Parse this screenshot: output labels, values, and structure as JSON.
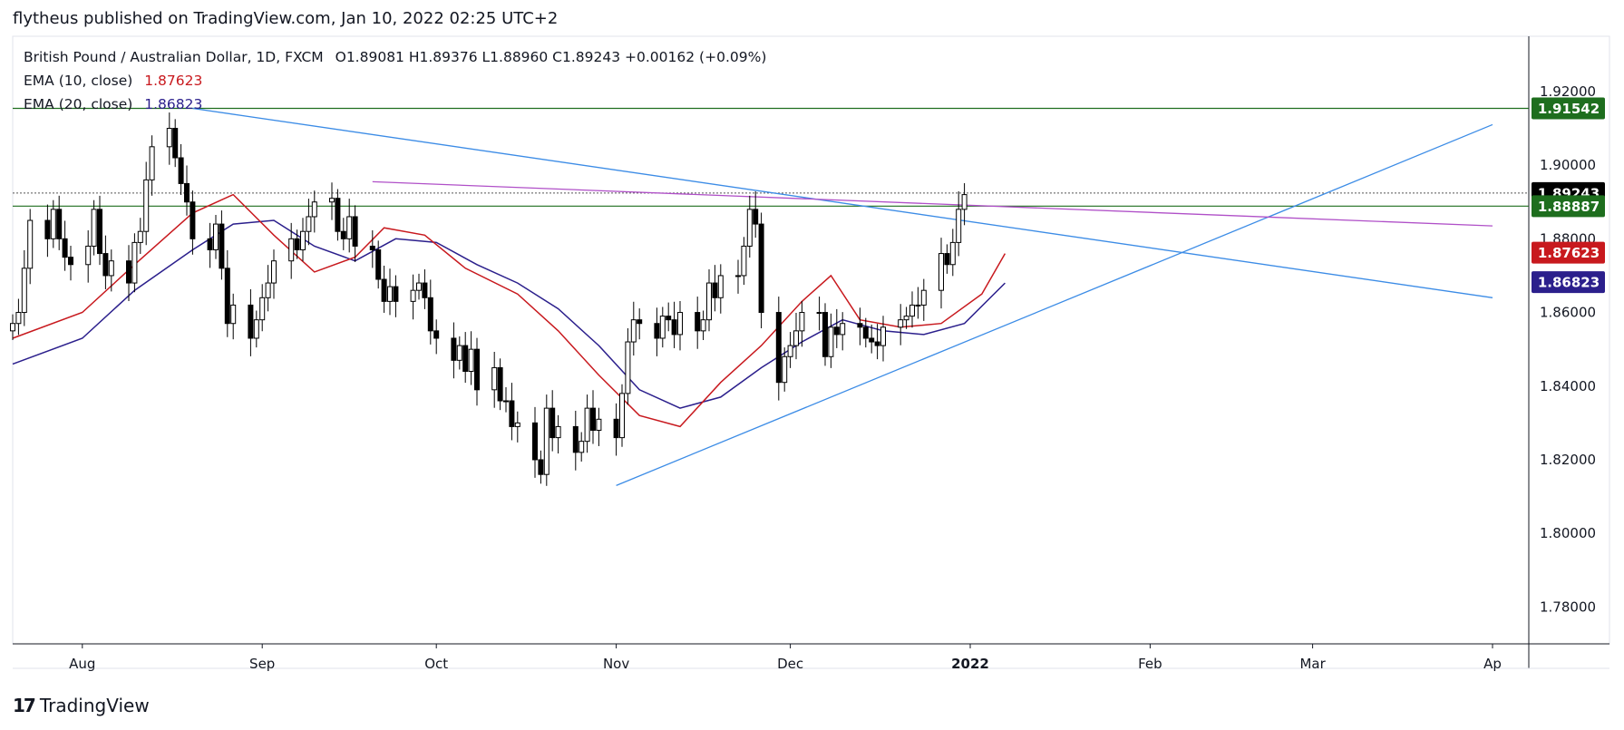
{
  "header": {
    "published": "flytheus published on TradingView.com, Jan 10, 2022 02:25 UTC+2"
  },
  "legend": {
    "symbol": "British Pound / Australian Dollar, 1D, FXCM",
    "ohlc": "O1.89081 H1.89376 L1.88960 C1.89243 +0.00162 (+0.09%)",
    "ema10_label": "EMA (10, close)",
    "ema10_value": "1.87623",
    "ema20_label": "EMA (20, close)",
    "ema20_value": "1.86823"
  },
  "footer": {
    "logo": "17",
    "brand": "TradingView"
  },
  "colors": {
    "ema10": "#c8191e",
    "ema20": "#2b1f8c",
    "trendline": "#3c8ce6",
    "resistance": "#b050c8",
    "horizontal": "#1e6e1e",
    "price_badge": "#000000",
    "green_badge": "#1e6e1e",
    "red_badge": "#c8191e",
    "blue_badge": "#2b1f8c"
  },
  "chart_data": {
    "type": "candlestick",
    "symbol": "GBPAUD",
    "interval": "1D",
    "ylim": [
      1.77,
      1.935
    ],
    "y_ticks": [
      "1.92000",
      "1.90000",
      "1.88000",
      "1.86000",
      "1.84000",
      "1.82000",
      "1.80000",
      "1.78000"
    ],
    "x_ticks": [
      {
        "label": "Aug",
        "date": "2021-08-01"
      },
      {
        "label": "Sep",
        "date": "2021-09-01"
      },
      {
        "label": "Oct",
        "date": "2021-10-01"
      },
      {
        "label": "Nov",
        "date": "2021-11-01"
      },
      {
        "label": "Dec",
        "date": "2021-12-01"
      },
      {
        "label": "2022",
        "date": "2022-01-01"
      },
      {
        "label": "Feb",
        "date": "2022-02-01"
      },
      {
        "label": "Mar",
        "date": "2022-03-01"
      },
      {
        "label": "Ap",
        "date": "2022-04-01"
      }
    ],
    "price_labels": [
      {
        "value": 1.91542,
        "text": "1.91542",
        "kind": "green"
      },
      {
        "value": 1.89243,
        "text": "1.89243",
        "kind": "price"
      },
      {
        "value": 1.88887,
        "text": "1.88887",
        "kind": "green"
      },
      {
        "value": 1.87623,
        "text": "1.87623",
        "kind": "red"
      },
      {
        "value": 1.86823,
        "text": "1.86823",
        "kind": "blue"
      }
    ],
    "close_series": [
      1.857,
      1.86,
      1.872,
      1.885,
      1.88,
      1.888,
      1.88,
      1.875,
      1.873,
      1.878,
      1.888,
      1.876,
      1.87,
      1.874,
      1.868,
      1.879,
      1.882,
      1.896,
      1.905,
      1.91,
      1.902,
      1.895,
      1.89,
      1.88,
      1.877,
      1.884,
      1.872,
      1.857,
      1.862,
      1.853,
      1.858,
      1.864,
      1.868,
      1.874,
      1.88,
      1.877,
      1.882,
      1.886,
      1.89,
      1.891,
      1.882,
      1.88,
      1.886,
      1.878,
      1.877,
      1.869,
      1.863,
      1.867,
      1.863,
      1.866,
      1.868,
      1.864,
      1.855,
      1.853,
      1.847,
      1.851,
      1.844,
      1.85,
      1.839,
      1.845,
      1.836,
      1.836,
      1.829,
      1.83,
      1.82,
      1.816,
      1.834,
      1.826,
      1.829,
      1.822,
      1.825,
      1.834,
      1.828,
      1.831,
      1.826,
      1.838,
      1.852,
      1.858,
      1.857,
      1.853,
      1.859,
      1.858,
      1.854,
      1.86,
      1.855,
      1.858,
      1.868,
      1.864,
      1.87,
      1.87,
      1.878,
      1.888,
      1.884,
      1.86,
      1.841,
      1.848,
      1.851,
      1.855,
      1.86,
      1.86,
      1.848,
      1.856,
      1.854,
      1.857,
      1.856,
      1.853,
      1.852,
      1.851,
      1.856,
      1.858,
      1.859,
      1.862,
      1.862,
      1.866,
      1.876,
      1.873,
      1.879,
      1.888,
      1.892
    ],
    "ema10_points": [
      {
        "date": "2021-07-20",
        "value": 1.853
      },
      {
        "date": "2021-08-01",
        "value": 1.86
      },
      {
        "date": "2021-08-10",
        "value": 1.873
      },
      {
        "date": "2021-08-20",
        "value": 1.887
      },
      {
        "date": "2021-08-27",
        "value": 1.892
      },
      {
        "date": "2021-09-03",
        "value": 1.881
      },
      {
        "date": "2021-09-10",
        "value": 1.871
      },
      {
        "date": "2021-09-17",
        "value": 1.875
      },
      {
        "date": "2021-09-22",
        "value": 1.883
      },
      {
        "date": "2021-09-29",
        "value": 1.881
      },
      {
        "date": "2021-10-06",
        "value": 1.872
      },
      {
        "date": "2021-10-15",
        "value": 1.865
      },
      {
        "date": "2021-10-22",
        "value": 1.855
      },
      {
        "date": "2021-10-29",
        "value": 1.843
      },
      {
        "date": "2021-11-05",
        "value": 1.832
      },
      {
        "date": "2021-11-12",
        "value": 1.829
      },
      {
        "date": "2021-11-19",
        "value": 1.841
      },
      {
        "date": "2021-11-26",
        "value": 1.851
      },
      {
        "date": "2021-12-03",
        "value": 1.863
      },
      {
        "date": "2021-12-08",
        "value": 1.87
      },
      {
        "date": "2021-12-13",
        "value": 1.858
      },
      {
        "date": "2021-12-20",
        "value": 1.856
      },
      {
        "date": "2021-12-27",
        "value": 1.857
      },
      {
        "date": "2022-01-03",
        "value": 1.865
      },
      {
        "date": "2022-01-07",
        "value": 1.876
      }
    ],
    "ema20_points": [
      {
        "date": "2021-07-20",
        "value": 1.846
      },
      {
        "date": "2021-08-01",
        "value": 1.853
      },
      {
        "date": "2021-08-10",
        "value": 1.866
      },
      {
        "date": "2021-08-20",
        "value": 1.877
      },
      {
        "date": "2021-08-27",
        "value": 1.884
      },
      {
        "date": "2021-09-03",
        "value": 1.885
      },
      {
        "date": "2021-09-10",
        "value": 1.878
      },
      {
        "date": "2021-09-17",
        "value": 1.874
      },
      {
        "date": "2021-09-24",
        "value": 1.88
      },
      {
        "date": "2021-10-01",
        "value": 1.879
      },
      {
        "date": "2021-10-08",
        "value": 1.873
      },
      {
        "date": "2021-10-15",
        "value": 1.868
      },
      {
        "date": "2021-10-22",
        "value": 1.861
      },
      {
        "date": "2021-10-29",
        "value": 1.851
      },
      {
        "date": "2021-11-05",
        "value": 1.839
      },
      {
        "date": "2021-11-12",
        "value": 1.834
      },
      {
        "date": "2021-11-19",
        "value": 1.837
      },
      {
        "date": "2021-11-26",
        "value": 1.845
      },
      {
        "date": "2021-12-03",
        "value": 1.852
      },
      {
        "date": "2021-12-10",
        "value": 1.858
      },
      {
        "date": "2021-12-17",
        "value": 1.855
      },
      {
        "date": "2021-12-24",
        "value": 1.854
      },
      {
        "date": "2021-12-31",
        "value": 1.857
      },
      {
        "date": "2022-01-07",
        "value": 1.868
      }
    ],
    "drawings": {
      "upper_horizontal": {
        "value": 1.91542
      },
      "lower_horizontal": {
        "value": 1.88887
      },
      "current_price": {
        "value": 1.89243
      },
      "descending_trendline": {
        "from": {
          "date": "2021-08-20",
          "value": 1.91542
        },
        "to": {
          "date": "2022-04-01",
          "value": 1.864
        }
      },
      "ascending_trendline": {
        "from": {
          "date": "2021-11-01",
          "value": 1.813
        },
        "to": {
          "date": "2022-04-01",
          "value": 1.911
        }
      },
      "resistance_line": {
        "from": {
          "date": "2021-09-20",
          "value": 1.8955
        },
        "to": {
          "date": "2022-04-01",
          "value": 1.8835
        }
      }
    }
  }
}
